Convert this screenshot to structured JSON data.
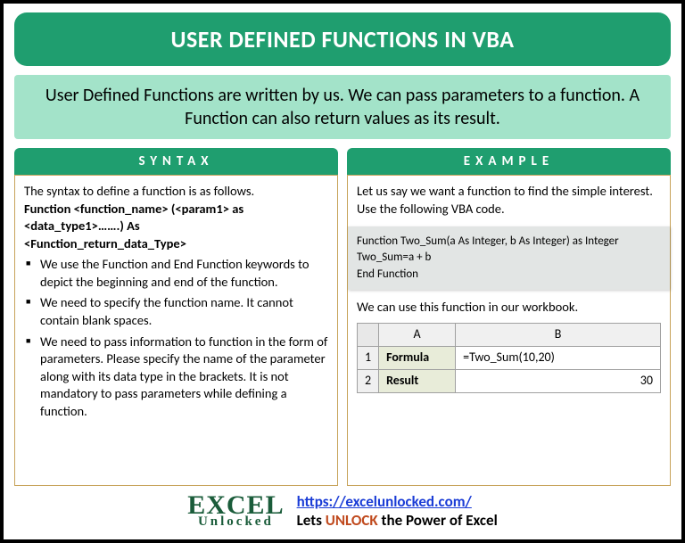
{
  "title": "USER DEFINED FUNCTIONS IN VBA",
  "intro": "User Defined Functions are written by us. We can pass parameters to a function. A Function can also return values as its result.",
  "syntax": {
    "header": "SYNTAX",
    "lead": "The syntax to define a function is as follows.",
    "sig1": "Function <function_name> (<param1> as <data_type1>…….) As",
    "sig2": "<Function_return_data_Type>",
    "bullets": [
      "We use the Function and End Function keywords to depict the beginning and end of the function.",
      "We need to specify the function name. It cannot contain blank spaces.",
      "We need to pass information to function in the form of parameters. Please specify the name of the parameter along with its data type in the brackets. It is not mandatory to pass parameters while defining a function."
    ]
  },
  "example": {
    "header": "EXAMPLE",
    "intro": "Let us say we want a function to find the simple interest. Use the following VBA code.",
    "code1": "Function Two_Sum(a As Integer, b As Integer) as Integer",
    "code2": "Two_Sum=a + b",
    "code3": "End Function",
    "usage": "We can use this function in our workbook.",
    "table": {
      "row1label": "Formula",
      "row1val": "=Two_Sum(10,20)",
      "row2label": "Result",
      "row2val": "30"
    }
  },
  "footer": {
    "logo_top": "EXCEL",
    "logo_bottom": "Unlocked",
    "url": "https://excelunlocked.com/",
    "tag_pre": "Lets ",
    "tag_unlock": "UNLOCK",
    "tag_post": " the Power of Excel"
  }
}
